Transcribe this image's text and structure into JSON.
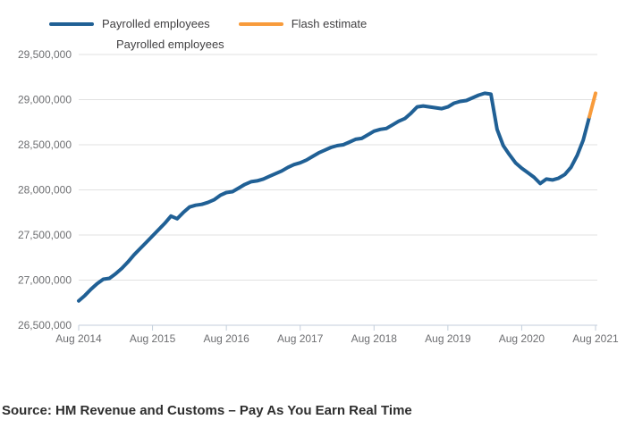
{
  "legend": {
    "items": [
      {
        "label": "Payrolled employees",
        "color": "#206095"
      },
      {
        "label": "Flash estimate",
        "color": "#f89b3b"
      }
    ]
  },
  "chart_title": "Payrolled employees",
  "source_note": "Source: HM Revenue and Customs – Pay As You Earn Real Time",
  "colors": {
    "grid": "#e2e2e2",
    "axis": "#c3cedb",
    "tick_label": "#6e6f72",
    "title": "#414042",
    "background": "#ffffff"
  },
  "chart_data": {
    "type": "line",
    "title": "Payrolled employees",
    "frequency": "monthly",
    "x_range": [
      "Aug 2014",
      "Aug 2021"
    ],
    "n_points": 85,
    "x_tick_labels": [
      "Aug 2014",
      "Aug 2015",
      "Aug 2016",
      "Aug 2017",
      "Aug 2018",
      "Aug 2019",
      "Aug 2020",
      "Aug 2021"
    ],
    "x_tick_month_indices": [
      0,
      12,
      24,
      36,
      48,
      60,
      72,
      84
    ],
    "ylim": [
      26500000,
      29500000
    ],
    "y_ticks": [
      26500000,
      27000000,
      27500000,
      28000000,
      28500000,
      29000000,
      29500000
    ],
    "y_tick_labels": [
      "26,500,000",
      "27,000,000",
      "27,500,000",
      "28,000,000",
      "28,500,000",
      "29,000,000",
      "29,500,000"
    ],
    "grid": "horizontal",
    "legend_position": "top",
    "series": [
      {
        "name": "Payrolled employees",
        "color": "#206095",
        "start_index": 0,
        "values": [
          26770000,
          26830000,
          26900000,
          26960000,
          27010000,
          27020000,
          27070000,
          27130000,
          27200000,
          27280000,
          27350000,
          27420000,
          27490000,
          27560000,
          27630000,
          27710000,
          27680000,
          27750000,
          27810000,
          27830000,
          27840000,
          27860000,
          27890000,
          27940000,
          27970000,
          27980000,
          28020000,
          28060000,
          28090000,
          28100000,
          28120000,
          28150000,
          28180000,
          28210000,
          28250000,
          28280000,
          28300000,
          28330000,
          28370000,
          28410000,
          28440000,
          28470000,
          28490000,
          28500000,
          28530000,
          28560000,
          28570000,
          28610000,
          28650000,
          28670000,
          28680000,
          28720000,
          28760000,
          28790000,
          28850000,
          28920000,
          28930000,
          28920000,
          28910000,
          28900000,
          28920000,
          28960000,
          28980000,
          28990000,
          29020000,
          29050000,
          29070000,
          29060000,
          28670000,
          28490000,
          28390000,
          28300000,
          28240000,
          28190000,
          28140000,
          28070000,
          28120000,
          28110000,
          28130000,
          28170000,
          28250000,
          28380000,
          28550000,
          28810000
        ]
      },
      {
        "name": "Flash estimate",
        "color": "#f89b3b",
        "start_index": 83,
        "values": [
          28810000,
          29070000
        ]
      }
    ]
  }
}
